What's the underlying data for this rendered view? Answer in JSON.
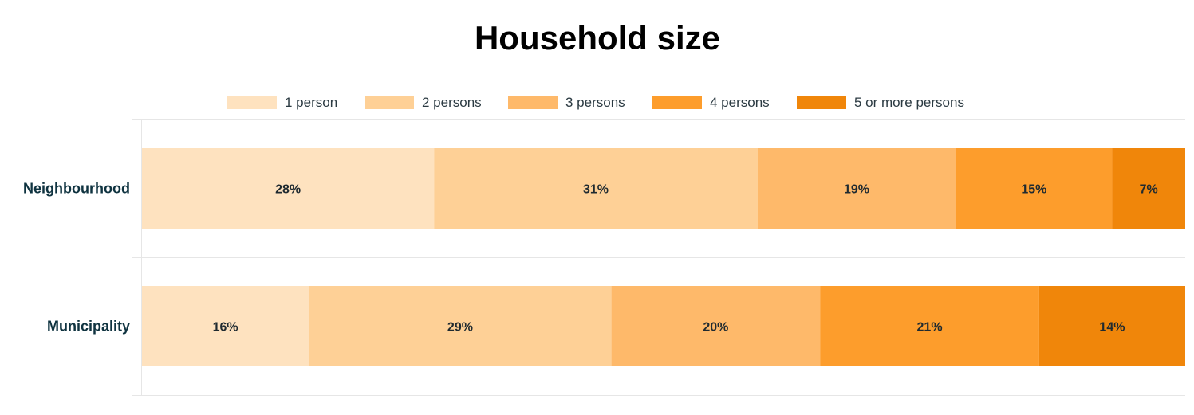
{
  "chart_data": {
    "type": "bar",
    "orientation": "horizontal",
    "stacked": true,
    "title": "Household size",
    "categories": [
      "Neighbourhood",
      "Municipality"
    ],
    "series": [
      {
        "name": "1 person",
        "values": [
          28,
          16
        ],
        "color": "#fee2bf"
      },
      {
        "name": "2 persons",
        "values": [
          31,
          29
        ],
        "color": "#fed096"
      },
      {
        "name": "3 persons",
        "values": [
          19,
          20
        ],
        "color": "#feb96a"
      },
      {
        "name": "4 persons",
        "values": [
          15,
          21
        ],
        "color": "#fd9d2c"
      },
      {
        "name": "5 or more persons",
        "values": [
          7,
          14
        ],
        "color": "#f0860a"
      }
    ],
    "value_suffix": "%",
    "xlim": [
      0,
      100
    ],
    "legend": "top",
    "grid": true
  }
}
